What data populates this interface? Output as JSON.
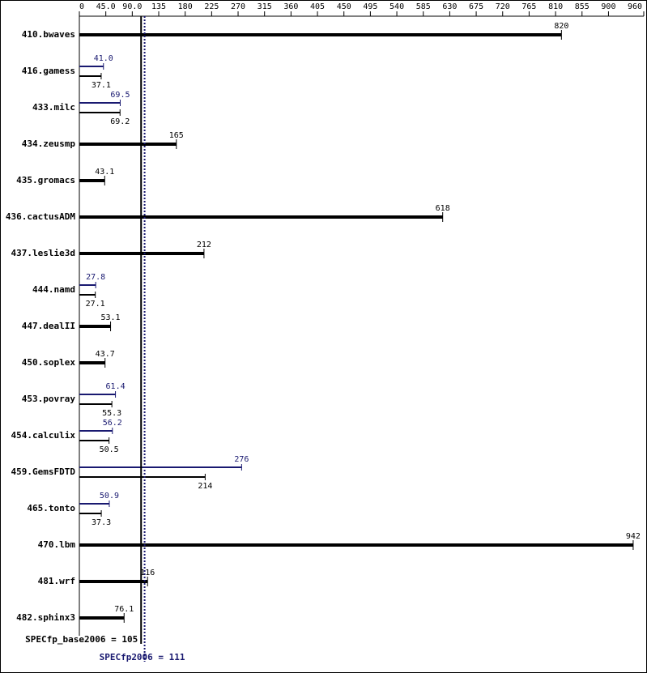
{
  "chart_data": {
    "type": "bar",
    "categories": [
      "410.bwaves",
      "416.gamess",
      "433.milc",
      "434.zeusmp",
      "435.gromacs",
      "436.cactusADM",
      "437.leslie3d",
      "444.namd",
      "447.dealII",
      "450.soplex",
      "453.povray",
      "454.calculix",
      "459.GemsFDTD",
      "465.tonto",
      "470.lbm",
      "481.wrf",
      "482.sphinx3"
    ],
    "series": [
      {
        "color": "#000000",
        "values": [
          820,
          37.1,
          69.2,
          165,
          43.1,
          618,
          212,
          27.1,
          53.1,
          43.7,
          55.3,
          50.5,
          214,
          37.3,
          942,
          116,
          76.1
        ]
      },
      {
        "color": "#191970",
        "values": [
          null,
          41.0,
          69.5,
          null,
          null,
          null,
          null,
          27.8,
          null,
          null,
          61.4,
          56.2,
          276,
          50.9,
          null,
          null,
          null
        ],
        "value_labels": [
          null,
          "41.0",
          null,
          null,
          null,
          null,
          null,
          null,
          null,
          null,
          null,
          null,
          null,
          null,
          null,
          null,
          null
        ]
      }
    ],
    "xlim": [
      0,
      960
    ],
    "xticks": [
      0,
      {
        "value": 45,
        "label": "45.0"
      },
      {
        "value": 90,
        "label": "90.0"
      },
      135,
      180,
      225,
      270,
      315,
      360,
      405,
      450,
      495,
      540,
      585,
      630,
      675,
      720,
      765,
      810,
      855,
      900,
      960
    ],
    "reference_lines": [
      {
        "label": "SPECfp_base2006 = 105",
        "value": 105,
        "color": "#000000"
      },
      {
        "label": "SPECfp2006 = 111",
        "value": 111,
        "color": "#191970"
      }
    ]
  }
}
